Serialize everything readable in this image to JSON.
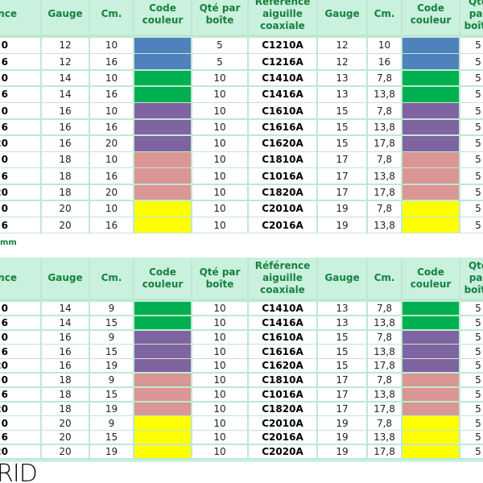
{
  "tables": [
    {
      "header": [
        "ence",
        "Gauge",
        "Cm.",
        "Code couleur",
        "Qté par boîte",
        "Référence aiguille coaxiale",
        "Gauge",
        "Cm.",
        "Code couleur",
        "Qté par boîte"
      ],
      "rows": [
        [
          "0",
          12,
          10,
          "#4f81bd",
          5,
          "C1210A",
          12,
          10,
          "#4f81bd",
          5
        ],
        [
          "6",
          12,
          16,
          "#4f81bd",
          5,
          "C1216A",
          12,
          16,
          "#4f81bd",
          5
        ],
        [
          "0",
          14,
          10,
          "#00b050",
          10,
          "C1410A",
          13,
          "7,8",
          "#00b050",
          5
        ],
        [
          "6",
          14,
          16,
          "#00b050",
          10,
          "C1416A",
          13,
          "13,8",
          "#00b050",
          5
        ],
        [
          "0",
          16,
          10,
          "#8064a2",
          10,
          "C1610A",
          15,
          "7,8",
          "#8064a2",
          5
        ],
        [
          "6",
          16,
          16,
          "#8064a2",
          10,
          "C1616A",
          15,
          "13,8",
          "#8064a2",
          5
        ],
        [
          "20",
          16,
          20,
          "#8064a2",
          10,
          "C1620A",
          15,
          "17,8",
          "#8064a2",
          5
        ],
        [
          "0",
          18,
          10,
          "#d99694",
          10,
          "C1810A",
          17,
          "7,8",
          "#d99694",
          5
        ],
        [
          "6",
          18,
          16,
          "#d99694",
          10,
          "C1016A",
          17,
          "13,8",
          "#d99694",
          5
        ],
        [
          "20",
          18,
          20,
          "#d99694",
          10,
          "C1820A",
          17,
          "17,8",
          "#d99694",
          5
        ],
        [
          "0",
          20,
          10,
          "#ffff00",
          10,
          "C2010A",
          19,
          "7,8",
          "#ffff00",
          5
        ],
        [
          "6",
          20,
          16,
          "#ffff00",
          10,
          "C2016A",
          19,
          "13,8",
          "#ffff00",
          5
        ]
      ]
    },
    {
      "header": [
        "ence",
        "Gauge",
        "Cm.",
        "Code couleur",
        "Qté par boîte",
        "Référence aiguille coaxiale",
        "Gauge",
        "Cm.",
        "Code couleur",
        "Qté par boîte"
      ],
      "rows": [
        [
          "0",
          14,
          9,
          "#00b050",
          10,
          "C1410A",
          13,
          "7,8",
          "#00b050",
          5
        ],
        [
          "6",
          14,
          15,
          "#00b050",
          10,
          "C1416A",
          13,
          "13,8",
          "#00b050",
          5
        ],
        [
          "0",
          16,
          9,
          "#8064a2",
          10,
          "C1610A",
          15,
          "7,8",
          "#8064a2",
          5
        ],
        [
          "6",
          16,
          15,
          "#8064a2",
          10,
          "C1616A",
          15,
          "13,8",
          "#8064a2",
          5
        ],
        [
          "20",
          16,
          19,
          "#8064a2",
          10,
          "C1620A",
          15,
          "17,8",
          "#8064a2",
          5
        ],
        [
          "0",
          18,
          9,
          "#d99694",
          10,
          "C1810A",
          17,
          "7,8",
          "#d99694",
          5
        ],
        [
          "6",
          18,
          15,
          "#d99694",
          10,
          "C1016A",
          17,
          "13,8",
          "#d99694",
          5
        ],
        [
          "20",
          18,
          19,
          "#d99694",
          10,
          "C1820A",
          17,
          "17,8",
          "#d99694",
          5
        ],
        [
          "0",
          20,
          9,
          "#ffff00",
          10,
          "C2010A",
          19,
          "7,8",
          "#ffff00",
          5
        ],
        [
          "6",
          20,
          15,
          "#ffff00",
          10,
          "C2016A",
          19,
          "13,8",
          "#ffff00",
          5
        ],
        [
          "20",
          20,
          19,
          "#ffff00",
          10,
          "C2020A",
          19,
          "17,8",
          "#ffff00",
          5
        ]
      ]
    }
  ],
  "note": "mm",
  "logo": "RID"
}
